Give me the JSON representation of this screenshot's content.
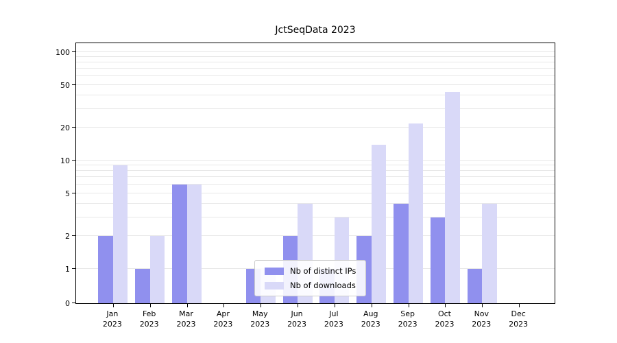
{
  "chart_data": {
    "type": "bar",
    "title": "JctSeqData 2023",
    "x_tick_months": [
      "Jan",
      "Feb",
      "Mar",
      "Apr",
      "May",
      "Jun",
      "Jul",
      "Aug",
      "Sep",
      "Oct",
      "Nov",
      "Dec"
    ],
    "x_tick_year": "2023",
    "yticks": [
      0,
      1,
      2,
      5,
      10,
      20,
      50,
      100
    ],
    "gridlines": [
      1,
      2,
      3,
      4,
      5,
      6,
      7,
      8,
      9,
      10,
      20,
      30,
      40,
      50,
      60,
      70,
      80,
      90,
      100
    ],
    "yscale": "symlog",
    "ylim": [
      0,
      124
    ],
    "grid": true,
    "legend_position": "lower center",
    "series": [
      {
        "name": "Nb of distinct IPs",
        "color": "#9090ee",
        "values": [
          2,
          1,
          6,
          0,
          1,
          2,
          1,
          2,
          4,
          3,
          1,
          0
        ]
      },
      {
        "name": "Nb of downloads",
        "color": "#d9d9f8",
        "values": [
          9,
          2,
          6,
          0,
          1,
          4,
          3,
          14,
          22,
          43,
          4,
          0
        ]
      }
    ]
  }
}
